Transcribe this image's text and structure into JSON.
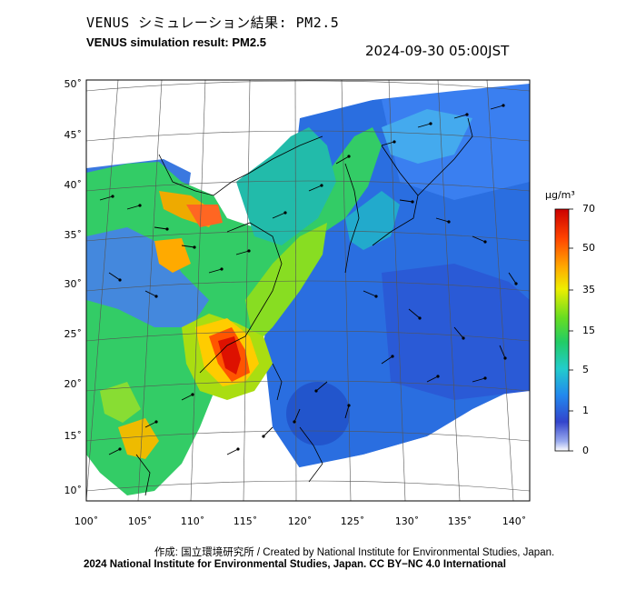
{
  "header": {
    "title_jp": "VENUS シミュレーション結果: PM2.5",
    "title_en": "VENUS simulation result: PM2.5",
    "timestamp": "2024-09-30 05:00JST"
  },
  "map": {
    "lat_labels": [
      "50˚",
      "45˚",
      "40˚",
      "35˚",
      "30˚",
      "25˚",
      "20˚",
      "15˚",
      "10˚"
    ],
    "lon_labels": [
      "100˚",
      "105˚",
      "110˚",
      "115˚",
      "120˚",
      "125˚",
      "130˚",
      "135˚",
      "140˚"
    ],
    "region": "East Asia",
    "field": "PM2.5 concentration with wind vectors"
  },
  "colorbar": {
    "unit": "μg/m³",
    "ticks": [
      "70",
      "50",
      "35",
      "15",
      "5",
      "1",
      "0"
    ],
    "colors": [
      "#cc0000",
      "#ff4400",
      "#ffaa00",
      "#ffee00",
      "#aaee00",
      "#33cc33",
      "#22cccc",
      "#2288ee",
      "#3344cc",
      "#8899ee",
      "#ffffff"
    ]
  },
  "footer": {
    "credit": "作成: 国立環境研究所 / Created by National Institute for Environmental Studies, Japan.",
    "license": "2024 National Institute for Environmental Studies, Japan. CC BY−NC 4.0 International"
  }
}
